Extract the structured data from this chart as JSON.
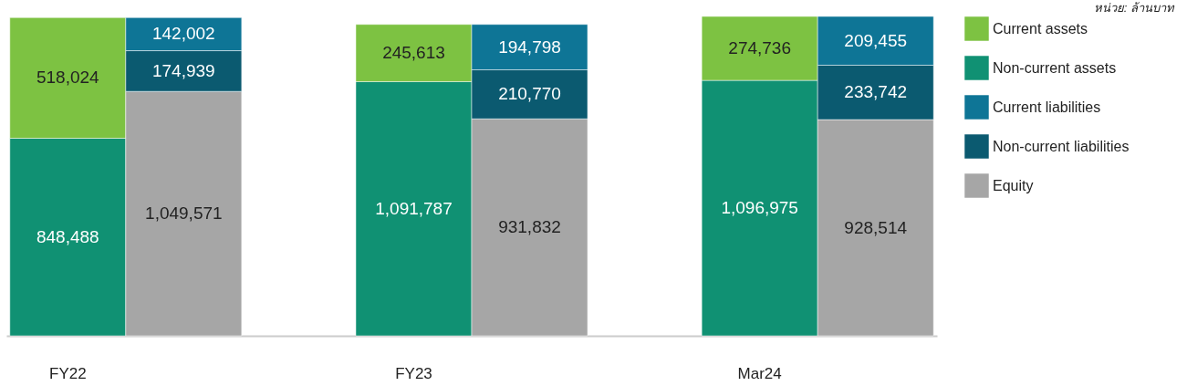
{
  "chart_data": {
    "type": "bar",
    "stacked": true,
    "legend": "right",
    "annotations": [
      "หน่วย: ล้านบาท"
    ],
    "categories": [
      "FY22",
      null,
      "FY23",
      null,
      "Mar24",
      null
    ],
    "series": [
      {
        "name": "Non-current assets",
        "color": "#109173",
        "values": [
          848488,
          null,
          1091787,
          null,
          1096975,
          null
        ],
        "value_labels": [
          "848,488",
          null,
          "1,091,787",
          null,
          "1,096,975",
          null
        ]
      },
      {
        "name": "Current assets",
        "color": "#7dc242",
        "values": [
          518024,
          null,
          245613,
          null,
          274736,
          null
        ],
        "value_labels": [
          "518,024",
          null,
          "245,613",
          null,
          "274,736",
          null
        ]
      },
      {
        "name": "Equity",
        "color": "#a6a6a6",
        "values": [
          null,
          1049571,
          null,
          931832,
          null,
          928514
        ],
        "value_labels": [
          null,
          "1,049,571",
          null,
          "931,832",
          null,
          "928,514"
        ]
      },
      {
        "name": "Non-current liabilities",
        "color": "#0b5a70",
        "values": [
          null,
          174939,
          null,
          210770,
          null,
          233742
        ],
        "value_labels": [
          null,
          "174,939",
          null,
          "210,770",
          null,
          "233,742"
        ]
      },
      {
        "name": "Current liabilities",
        "color": "#0e7596",
        "values": [
          null,
          142002,
          null,
          194798,
          null,
          209455
        ],
        "value_labels": [
          null,
          "142,002",
          null,
          "194,798",
          null,
          "209,455"
        ]
      }
    ]
  }
}
